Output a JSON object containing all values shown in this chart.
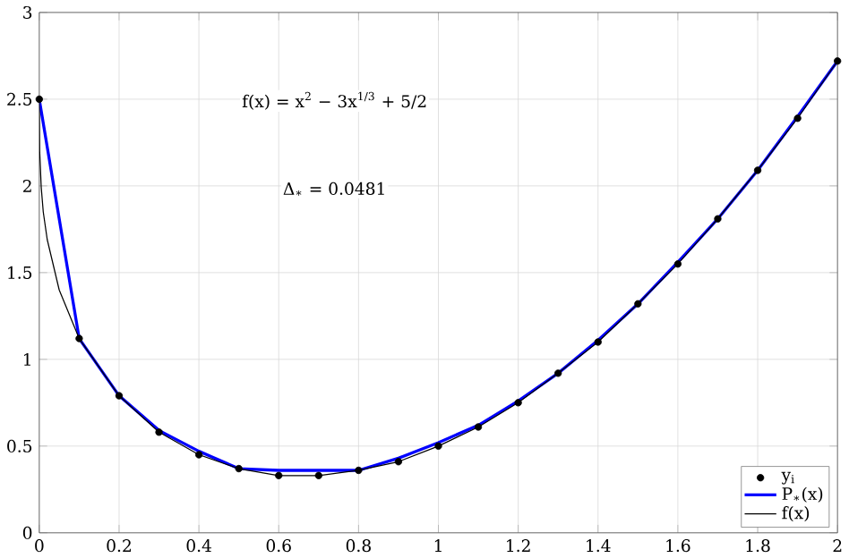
{
  "chart_data": {
    "type": "line",
    "annotations": [
      "f(x) = x$^{2}$ − 3x$^{1/3}$ + 5/2",
      "Δ$_{∗}$ = 0.0481"
    ],
    "x": [
      0,
      0.1,
      0.2,
      0.3,
      0.4,
      0.5,
      0.6,
      0.7,
      0.8,
      0.9,
      1.0,
      1.1,
      1.2,
      1.3,
      1.4,
      1.5,
      1.6,
      1.7,
      1.8,
      1.9,
      2.0
    ],
    "series": [
      {
        "name": "y$_{i}$",
        "type": "scatter",
        "marker": "circle",
        "color": "#000000",
        "values": [
          2.5,
          1.12,
          0.79,
          0.58,
          0.45,
          0.37,
          0.33,
          0.33,
          0.36,
          0.41,
          0.5,
          0.61,
          0.75,
          0.92,
          1.1,
          1.32,
          1.55,
          1.81,
          2.09,
          2.39,
          2.72
        ]
      },
      {
        "name": "P$_{∗}$(x)",
        "color": "#0000ff",
        "values": [
          2.5,
          1.12,
          0.79,
          0.59,
          0.47,
          0.37,
          0.36,
          0.36,
          0.36,
          0.43,
          0.52,
          0.62,
          0.76,
          0.92,
          1.11,
          1.32,
          1.56,
          1.81,
          2.09,
          2.4,
          2.72
        ]
      },
      {
        "name": "f(x)",
        "color": "#000000",
        "x": [
          0,
          0.001,
          0.005,
          0.01,
          0.02,
          0.05,
          0.1,
          0.2,
          0.3,
          0.4,
          0.5,
          0.6,
          0.7,
          0.8,
          0.9,
          1.0,
          1.1,
          1.2,
          1.3,
          1.4,
          1.5,
          1.6,
          1.7,
          1.8,
          1.9,
          2.0
        ],
        "values": [
          2.5,
          2.2,
          1.99,
          1.85,
          1.69,
          1.4,
          1.12,
          0.79,
          0.58,
          0.45,
          0.37,
          0.33,
          0.33,
          0.36,
          0.41,
          0.5,
          0.61,
          0.75,
          0.92,
          1.1,
          1.32,
          1.55,
          1.81,
          2.09,
          2.39,
          2.72
        ]
      }
    ],
    "xlim": [
      0,
      2
    ],
    "ylim": [
      0,
      3
    ],
    "xticks": [
      0,
      0.2,
      0.4,
      0.6,
      0.8,
      1,
      1.2,
      1.4,
      1.6,
      1.8,
      2
    ],
    "yticks": [
      0,
      0.5,
      1,
      1.5,
      2,
      2.5,
      3
    ],
    "grid": true,
    "legend": "bottom right"
  }
}
